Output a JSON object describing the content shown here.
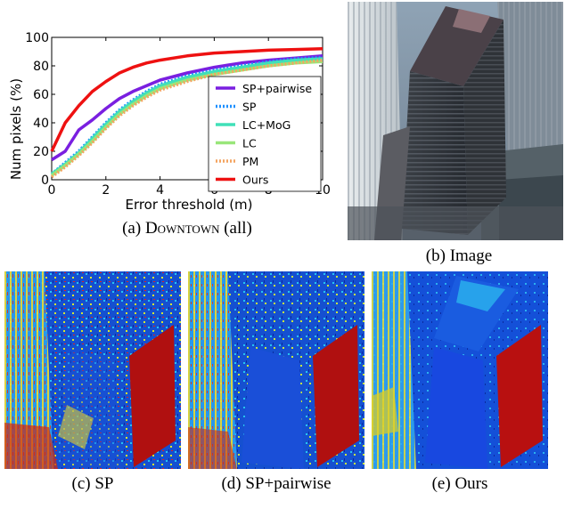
{
  "chart_data": {
    "type": "line",
    "xlabel": "Error threshold (m)",
    "ylabel": "Num pixels (%)",
    "xlim": [
      0,
      10
    ],
    "ylim": [
      0,
      100
    ],
    "x_ticks": [
      "0",
      "2",
      "4",
      "6",
      "8",
      "10"
    ],
    "y_ticks": [
      "0",
      "20",
      "40",
      "60",
      "80",
      "100"
    ],
    "grid": false,
    "legend_position": "lower-right",
    "x": [
      0,
      0.5,
      1,
      1.5,
      2,
      2.5,
      3,
      3.5,
      4,
      5,
      6,
      7,
      8,
      9,
      10
    ],
    "series": [
      {
        "name": "SP+pairwise",
        "color": "#7a1fe0",
        "style": "solid",
        "values": [
          14,
          20,
          35,
          42,
          50,
          57,
          62,
          66,
          70,
          75,
          79,
          82,
          84,
          85.5,
          87
        ]
      },
      {
        "name": "SP",
        "color": "#1e90ff",
        "style": "dotted",
        "values": [
          4,
          12,
          20,
          30,
          40,
          49,
          56,
          62,
          67,
          73,
          77,
          80,
          83,
          85,
          86
        ]
      },
      {
        "name": "LC+MoG",
        "color": "#40e0b8",
        "style": "solid",
        "values": [
          4,
          11,
          19,
          29,
          39,
          48,
          55,
          61,
          66,
          72,
          76,
          79,
          82,
          84,
          85
        ]
      },
      {
        "name": "LC",
        "color": "#99e67a",
        "style": "solid",
        "values": [
          3,
          10,
          18,
          27,
          37,
          46,
          53,
          59,
          64,
          70,
          74,
          77,
          80,
          82,
          83
        ]
      },
      {
        "name": "PM",
        "color": "#f4a460",
        "style": "dotted",
        "values": [
          2,
          9,
          17,
          26,
          36,
          45,
          52,
          58,
          63,
          69,
          74,
          77,
          80,
          82,
          84
        ]
      },
      {
        "name": "Ours",
        "color": "#ee1111",
        "style": "solid",
        "values": [
          20,
          40,
          52,
          62,
          69,
          75,
          79,
          82,
          84,
          87,
          89,
          90,
          91,
          91.5,
          92
        ]
      }
    ]
  },
  "captions": {
    "a_prefix": "(a) ",
    "a_name": "Downtown",
    "a_suffix": " (all)",
    "b": "(b) Image",
    "c": "(c) SP",
    "d": "(d) SP+pairwise",
    "e": "(e) Ours"
  }
}
